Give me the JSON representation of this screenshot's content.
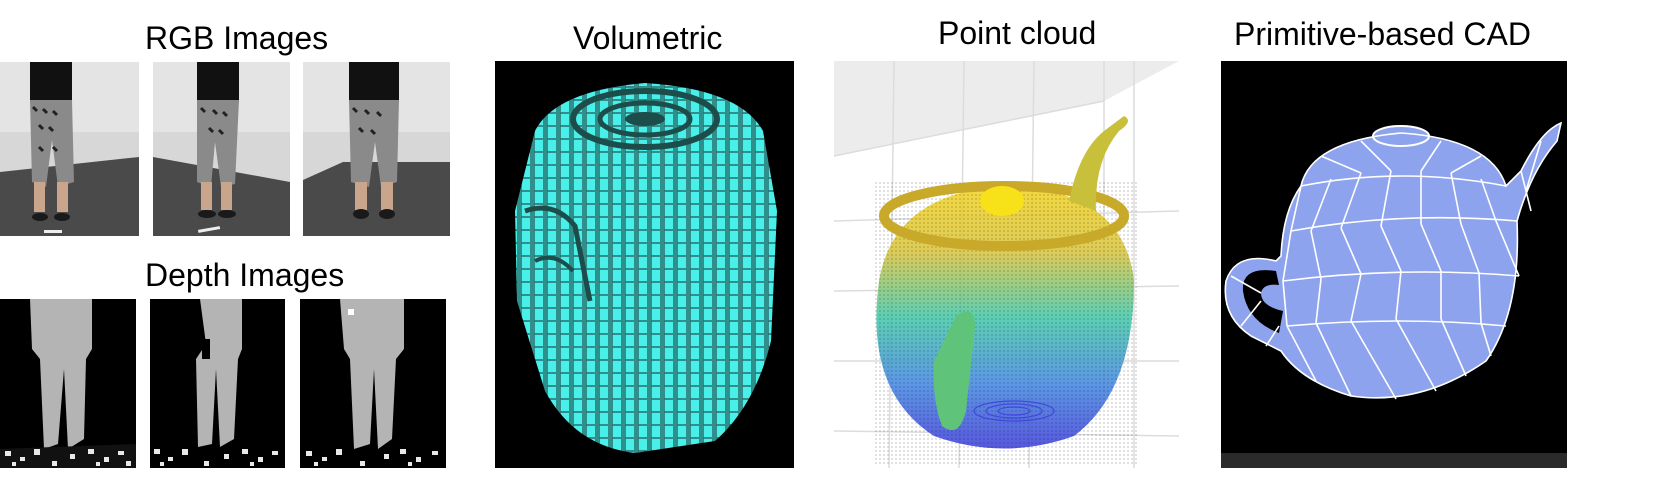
{
  "titles": {
    "rgb": "RGB Images",
    "depth": "Depth Images",
    "volumetric": "Volumetric",
    "pointcloud": "Point cloud",
    "cad": "Primitive-based CAD"
  },
  "rgb_images": [
    {
      "icon": "person-standing-front-icon"
    },
    {
      "icon": "person-standing-side-icon"
    },
    {
      "icon": "person-standing-back-icon"
    }
  ],
  "depth_images": [
    {
      "icon": "depth-silhouette-front-icon"
    },
    {
      "icon": "depth-silhouette-side-icon"
    },
    {
      "icon": "depth-silhouette-back-icon"
    }
  ],
  "colors": {
    "voxel": "#49f0ea",
    "voxel_edge": "#2a6e6c",
    "cad_face": "#8da3ee",
    "cad_edge": "#ffffff",
    "depth_body": "#b4b4b4",
    "pointcloud_top": "#f2d21d",
    "pointcloud_mid": "#3fc7a6",
    "pointcloud_bottom": "#3b3bd9"
  }
}
